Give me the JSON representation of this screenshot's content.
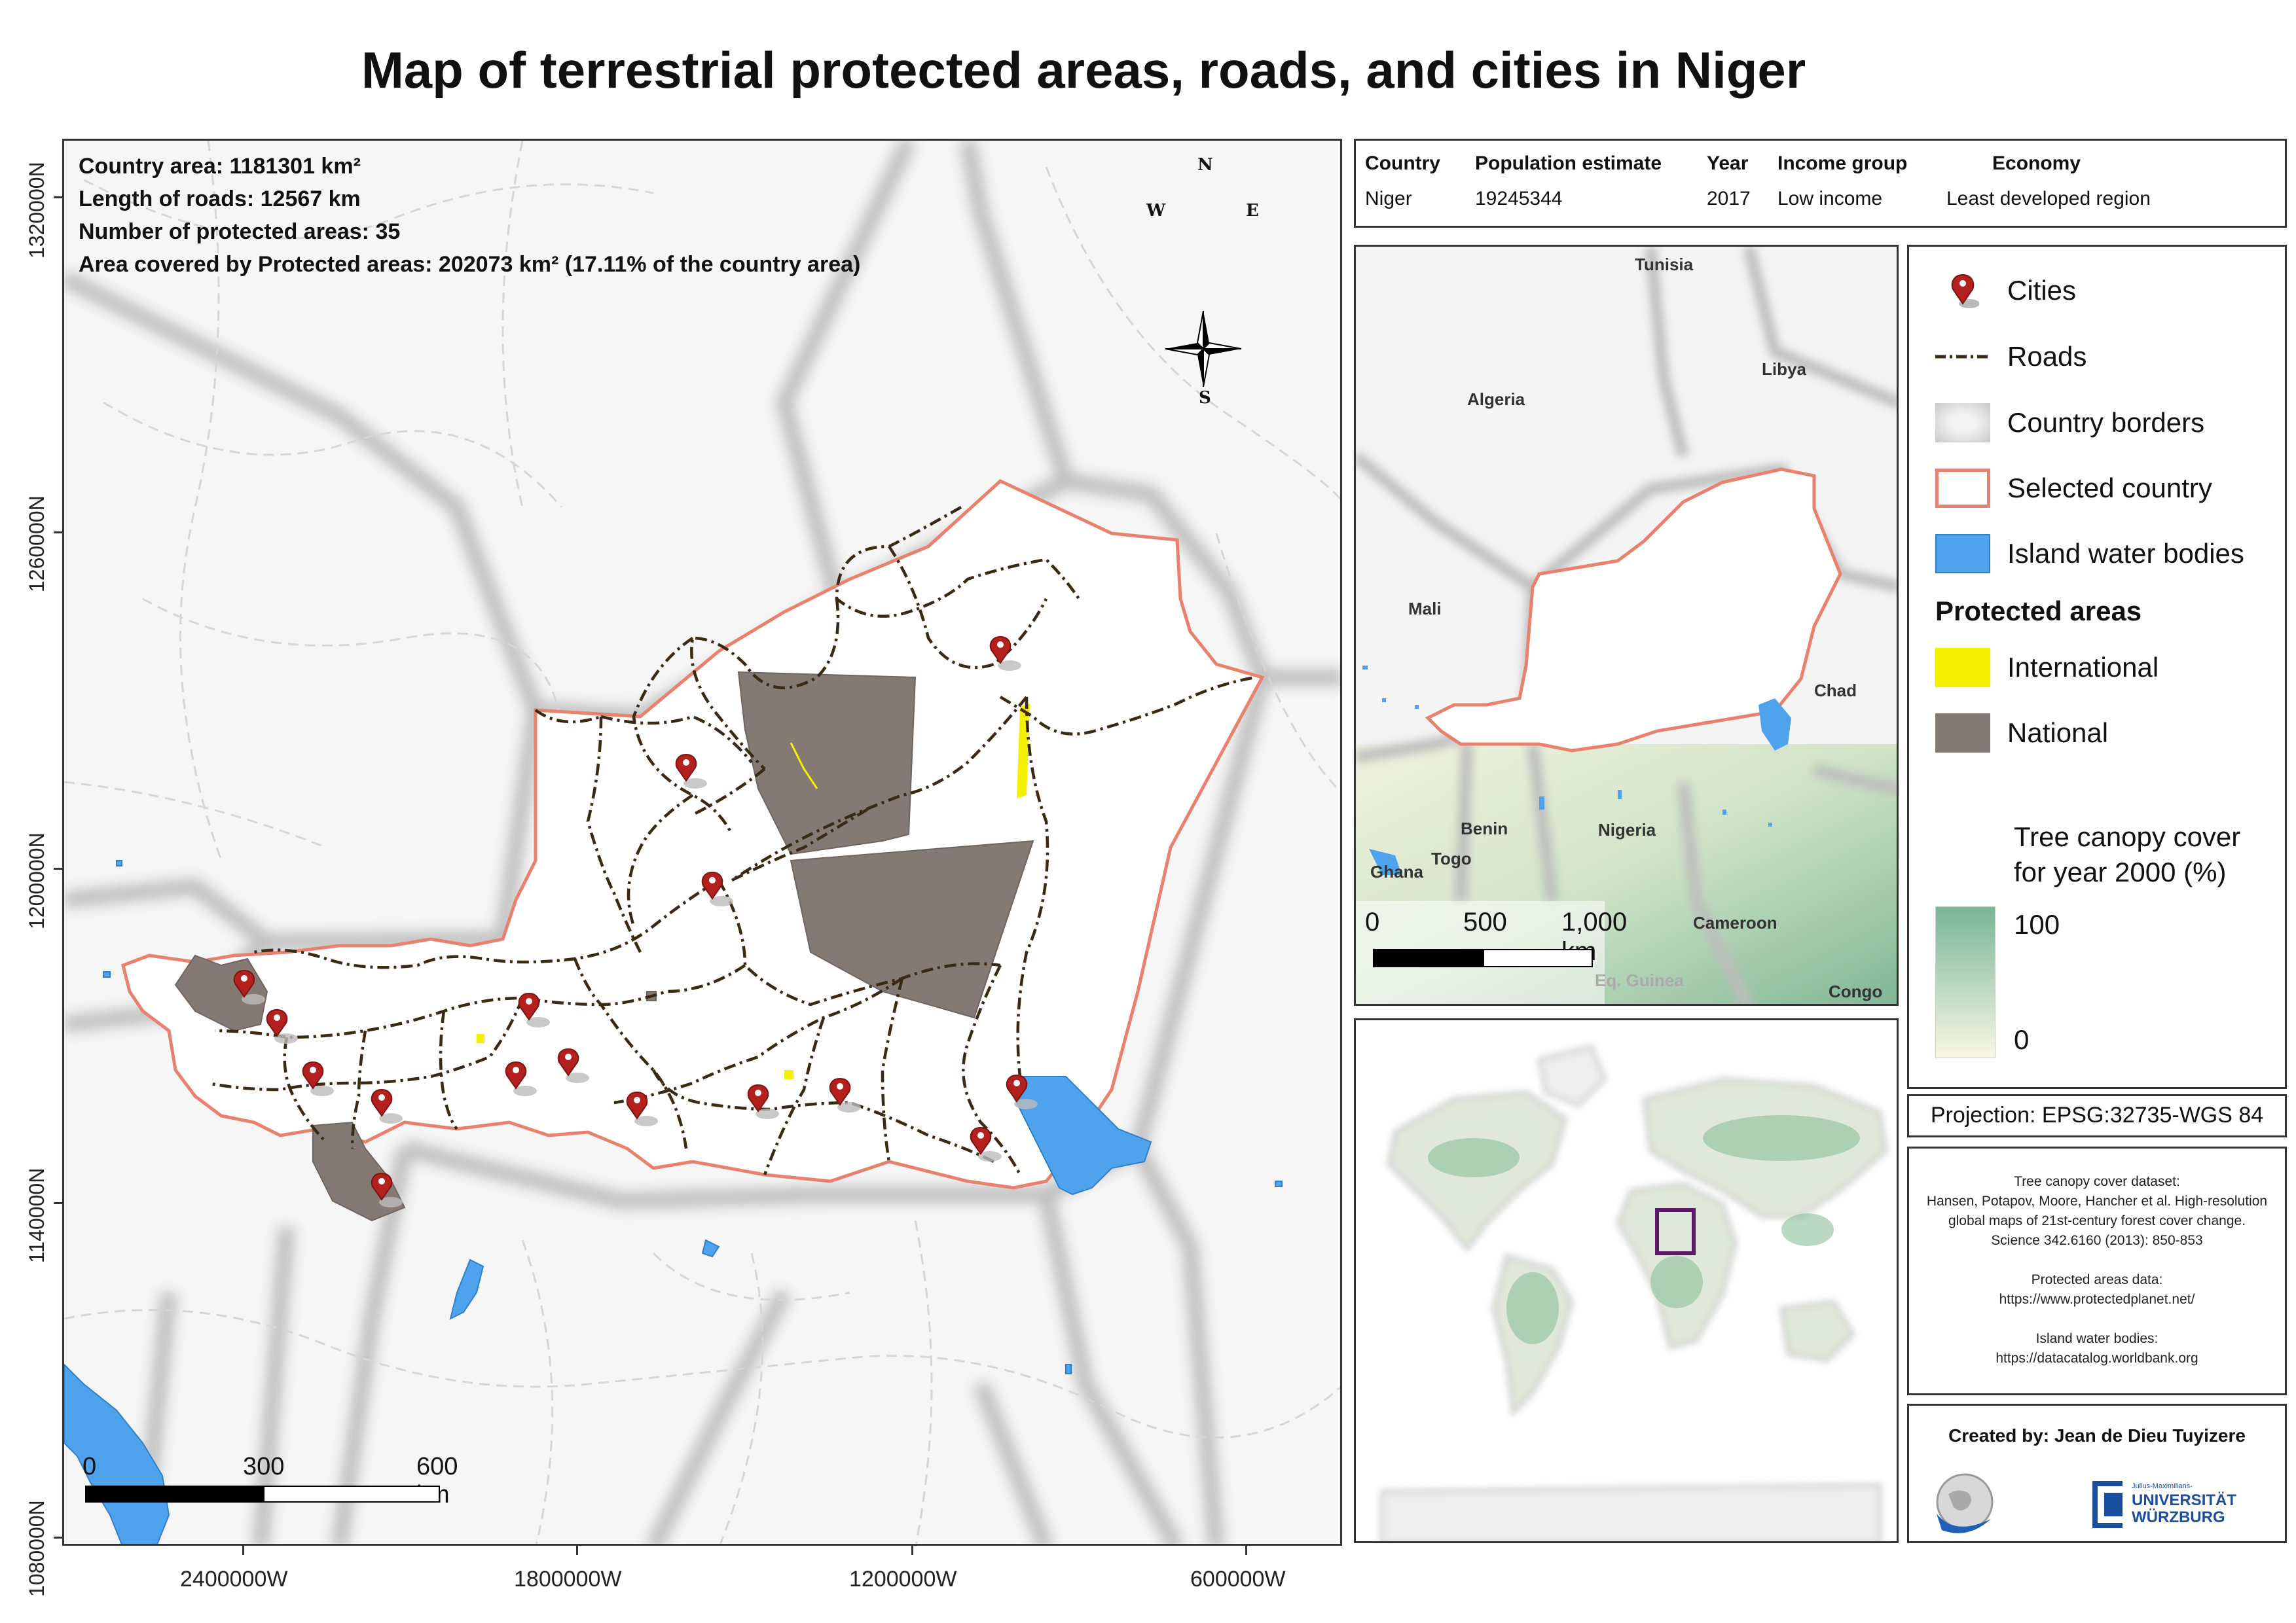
{
  "title": "Map of terrestrial protected areas, roads, and cities in Niger",
  "stats": {
    "country_area": "Country area: 1181301 km²",
    "length_of_roads": "Length of roads: 12567 km",
    "protected_count": "Number of protected areas: 35",
    "protected_area": "Area covered by Protected areas: 202073 km² (17.11% of the country area)"
  },
  "compass": {
    "n": "N",
    "s": "S",
    "e": "E",
    "w": "W"
  },
  "y_axis_labels": [
    "1320000N",
    "1260000N",
    "1200000N",
    "1140000N",
    "1080000N"
  ],
  "x_axis_labels": [
    "2400000W",
    "1800000W",
    "1200000W",
    "600000W"
  ],
  "main_scalebar": {
    "l0": "0",
    "l1": "300",
    "l2": "600 km"
  },
  "info_table": {
    "headers": [
      "Country",
      "Population estimate",
      "Year",
      "Income group",
      "Economy"
    ],
    "values": [
      "Niger",
      "19245344",
      "2017",
      "Low income",
      "Least developed region"
    ]
  },
  "regional_map": {
    "labels": [
      "Tunisia",
      "Libya",
      "Algeria",
      "Mali",
      "Chad",
      "Benin",
      "Nigeria",
      "Togo",
      "Ghana",
      "Cameroon",
      "Eq. Guinea",
      "Congo"
    ],
    "scalebar": {
      "l0": "0",
      "l1": "500",
      "l2": "1,000 km"
    }
  },
  "legend": {
    "cities": "Cities",
    "roads": "Roads",
    "borders": "Country borders",
    "selected": "Selected country",
    "water": "Island water bodies",
    "protected_heading": "Protected areas",
    "international": "International",
    "national": "National",
    "canopy_title_1": "Tree canopy cover",
    "canopy_title_2": "for year 2000 (%)",
    "canopy_max": "100",
    "canopy_min": "0"
  },
  "projection": "Projection: EPSG:32735-WGS 84",
  "credits": [
    "Tree canopy cover dataset:",
    "Hansen, Potapov, Moore, Hancher et al. High-resolution",
    "global maps of 21st-century forest cover change.",
    "Science 342.6160 (2013): 850-853",
    "",
    "Protected areas data:",
    "https://www.protectedplanet.net/",
    "",
    "Island water bodies:",
    "https://datacatalog.worldbank.org"
  ],
  "created_by": "Created by: Jean de Dieu Tuyizere",
  "university_logo": {
    "small": "Julius-Maximilians-",
    "line1": "UNIVERSITÄT",
    "line2": "WÜRZBURG"
  },
  "colors": {
    "selected_border": "#e8816e",
    "protected_national": "#857a73",
    "protected_international": "#f5f000",
    "water": "#4ea3ec",
    "road": "#3a2a14",
    "city_pin": "#b3201d",
    "canopy_high": "#79b596",
    "canopy_low": "#f8f7e4",
    "world_box": "#5b1a6a"
  }
}
